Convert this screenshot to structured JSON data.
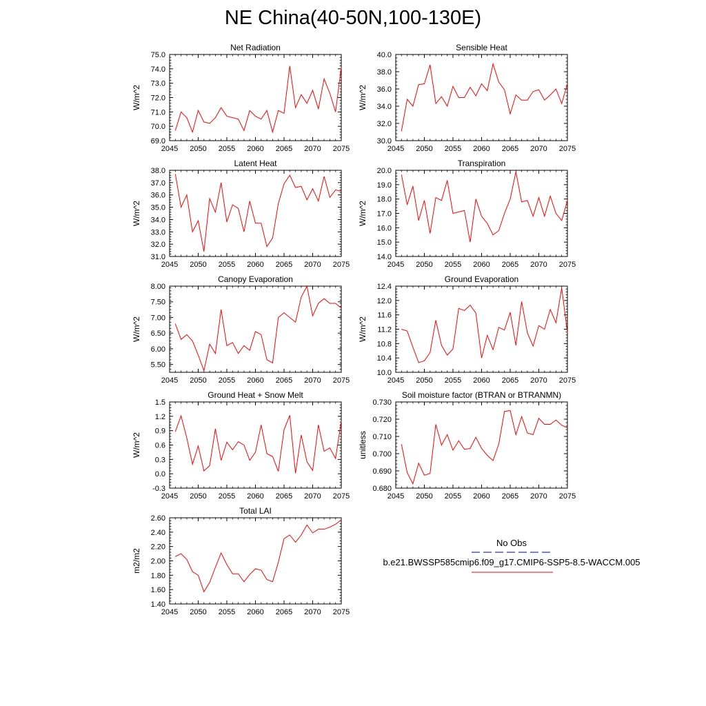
{
  "title": "NE China(40-50N,100-130E)",
  "colors": {
    "model": "#ff0000",
    "obs": "#00008b",
    "axis": "#000000"
  },
  "legend": {
    "obs_label": "No Obs",
    "model_label": "b.e21.BWSSP585cmip6.f09_g17.CMIP6-SSP5-8.5-WACCM.005"
  },
  "chart_data": [
    {
      "type": "line",
      "title": "Net Radiation",
      "ylabel": "W/m^2",
      "xlim": [
        2045,
        2075
      ],
      "ylim": [
        69.0,
        75.0
      ],
      "yticks": [
        "69.0",
        "70.0",
        "71.0",
        "72.0",
        "73.0",
        "74.0",
        "75.0"
      ],
      "xticks": [
        "2045",
        "2050",
        "2055",
        "2060",
        "2065",
        "2070",
        "2075"
      ],
      "x": [
        2046,
        2047,
        2048,
        2049,
        2050,
        2051,
        2052,
        2053,
        2054,
        2055,
        2056,
        2057,
        2058,
        2059,
        2060,
        2061,
        2062,
        2063,
        2064,
        2065,
        2066,
        2067,
        2068,
        2069,
        2070,
        2071,
        2072,
        2073,
        2074,
        2075
      ],
      "series": [
        {
          "values": [
            69.7,
            71.0,
            70.6,
            69.6,
            71.1,
            70.3,
            70.2,
            70.6,
            71.3,
            70.7,
            70.6,
            70.5,
            69.7,
            71.1,
            70.7,
            70.5,
            71.1,
            69.6,
            71.1,
            70.9,
            74.2,
            71.3,
            72.2,
            71.6,
            72.5,
            71.2,
            73.3,
            72.3,
            71.0,
            74.1
          ]
        }
      ]
    },
    {
      "type": "line",
      "title": "Sensible Heat",
      "ylabel": "W/m^2",
      "xlim": [
        2045,
        2075
      ],
      "ylim": [
        30.0,
        40.0
      ],
      "yticks": [
        "30.0",
        "32.0",
        "34.0",
        "36.0",
        "38.0",
        "40.0"
      ],
      "xticks": [
        "2045",
        "2050",
        "2055",
        "2060",
        "2065",
        "2070",
        "2075"
      ],
      "x": [
        2046,
        2047,
        2048,
        2049,
        2050,
        2051,
        2052,
        2053,
        2054,
        2055,
        2056,
        2057,
        2058,
        2059,
        2060,
        2061,
        2062,
        2063,
        2064,
        2065,
        2066,
        2067,
        2068,
        2069,
        2070,
        2071,
        2072,
        2073,
        2074,
        2075
      ],
      "series": [
        {
          "values": [
            31.1,
            34.8,
            34.0,
            36.5,
            36.6,
            38.8,
            34.3,
            35.1,
            34.0,
            36.3,
            35.0,
            35.0,
            36.2,
            35.2,
            36.6,
            35.8,
            38.9,
            36.8,
            35.9,
            33.1,
            35.3,
            34.7,
            34.7,
            35.7,
            35.9,
            34.7,
            35.3,
            36.0,
            34.3,
            36.6
          ]
        }
      ]
    },
    {
      "type": "line",
      "title": "Latent Heat",
      "ylabel": "W/m^2",
      "xlim": [
        2045,
        2075
      ],
      "ylim": [
        31.0,
        38.0
      ],
      "yticks": [
        "31.0",
        "32.0",
        "33.0",
        "34.0",
        "35.0",
        "36.0",
        "37.0",
        "38.0"
      ],
      "xticks": [
        "2045",
        "2050",
        "2055",
        "2060",
        "2065",
        "2070",
        "2075"
      ],
      "x": [
        2046,
        2047,
        2048,
        2049,
        2050,
        2051,
        2052,
        2053,
        2054,
        2055,
        2056,
        2057,
        2058,
        2059,
        2060,
        2061,
        2062,
        2063,
        2064,
        2065,
        2066,
        2067,
        2068,
        2069,
        2070,
        2071,
        2072,
        2073,
        2074,
        2075
      ],
      "series": [
        {
          "values": [
            37.7,
            35.0,
            36.0,
            33.0,
            33.9,
            31.4,
            35.7,
            34.6,
            37.0,
            33.8,
            35.2,
            34.9,
            33.0,
            35.5,
            33.7,
            33.7,
            31.8,
            32.5,
            35.3,
            36.9,
            37.6,
            36.6,
            36.7,
            35.6,
            36.5,
            35.5,
            37.5,
            35.8,
            36.4,
            36.3
          ]
        }
      ]
    },
    {
      "type": "line",
      "title": "Transpiration",
      "ylabel": "W/m^2",
      "xlim": [
        2045,
        2075
      ],
      "ylim": [
        14.0,
        20.0
      ],
      "yticks": [
        "14.0",
        "15.0",
        "16.0",
        "17.0",
        "18.0",
        "19.0",
        "20.0"
      ],
      "xticks": [
        "2045",
        "2050",
        "2055",
        "2060",
        "2065",
        "2070",
        "2075"
      ],
      "x": [
        2046,
        2047,
        2048,
        2049,
        2050,
        2051,
        2052,
        2053,
        2054,
        2055,
        2056,
        2057,
        2058,
        2059,
        2060,
        2061,
        2062,
        2063,
        2064,
        2065,
        2066,
        2067,
        2068,
        2069,
        2070,
        2071,
        2072,
        2073,
        2074,
        2075
      ],
      "series": [
        {
          "values": [
            19.7,
            17.6,
            18.9,
            16.5,
            17.9,
            15.6,
            18.1,
            17.9,
            19.3,
            17.0,
            17.1,
            17.2,
            15.0,
            18.0,
            16.8,
            16.3,
            15.5,
            15.8,
            17.0,
            18.0,
            19.9,
            17.8,
            17.9,
            16.8,
            18.1,
            16.8,
            18.2,
            17.0,
            16.5,
            17.9
          ]
        }
      ]
    },
    {
      "type": "line",
      "title": "Canopy Evaporation",
      "ylabel": "W/m^2",
      "xlim": [
        2045,
        2075
      ],
      "ylim": [
        5.25,
        8.0
      ],
      "yticks": [
        "5.50",
        "6.00",
        "6.50",
        "7.00",
        "7.50",
        "8.00"
      ],
      "xticks": [
        "2045",
        "2050",
        "2055",
        "2060",
        "2065",
        "2070",
        "2075"
      ],
      "x": [
        2046,
        2047,
        2048,
        2049,
        2050,
        2051,
        2052,
        2053,
        2054,
        2055,
        2056,
        2057,
        2058,
        2059,
        2060,
        2061,
        2062,
        2063,
        2064,
        2065,
        2066,
        2067,
        2068,
        2069,
        2070,
        2071,
        2072,
        2073,
        2074,
        2075
      ],
      "series": [
        {
          "values": [
            6.8,
            6.3,
            6.45,
            6.25,
            5.8,
            5.3,
            6.15,
            5.85,
            7.25,
            6.1,
            6.2,
            5.85,
            6.1,
            5.95,
            6.55,
            6.45,
            5.65,
            5.55,
            7.0,
            7.15,
            7.0,
            6.85,
            7.65,
            8.0,
            7.05,
            7.45,
            7.6,
            7.45,
            7.45,
            7.3
          ]
        }
      ]
    },
    {
      "type": "line",
      "title": "Ground Evaporation",
      "ylabel": "W/m^2",
      "xlim": [
        2045,
        2075
      ],
      "ylim": [
        10.0,
        12.4
      ],
      "yticks": [
        "10.0",
        "10.4",
        "10.8",
        "11.2",
        "11.6",
        "12.0",
        "12.4"
      ],
      "xticks": [
        "2045",
        "2050",
        "2055",
        "2060",
        "2065",
        "2070",
        "2075"
      ],
      "x": [
        2046,
        2047,
        2048,
        2049,
        2050,
        2051,
        2052,
        2053,
        2054,
        2055,
        2056,
        2057,
        2058,
        2059,
        2060,
        2061,
        2062,
        2063,
        2064,
        2065,
        2066,
        2067,
        2068,
        2069,
        2070,
        2071,
        2072,
        2073,
        2074,
        2075
      ],
      "series": [
        {
          "values": [
            11.2,
            11.15,
            10.7,
            10.27,
            10.32,
            10.55,
            11.45,
            10.75,
            10.48,
            10.65,
            11.78,
            11.72,
            11.87,
            11.65,
            10.4,
            11.03,
            10.63,
            11.25,
            11.18,
            11.67,
            10.75,
            11.97,
            11.1,
            10.73,
            11.3,
            11.2,
            11.75,
            11.38,
            12.35,
            11.1
          ]
        }
      ]
    },
    {
      "type": "line",
      "title": "Ground Heat + Snow Melt",
      "ylabel": "W/m^2",
      "xlim": [
        2045,
        2075
      ],
      "ylim": [
        -0.3,
        1.5
      ],
      "yticks": [
        "-0.3",
        "0.0",
        "0.3",
        "0.6",
        "0.9",
        "1.2",
        "1.5"
      ],
      "xticks": [
        "2045",
        "2050",
        "2055",
        "2060",
        "2065",
        "2070",
        "2075"
      ],
      "x": [
        2046,
        2047,
        2048,
        2049,
        2050,
        2051,
        2052,
        2053,
        2054,
        2055,
        2056,
        2057,
        2058,
        2059,
        2060,
        2061,
        2062,
        2063,
        2064,
        2065,
        2066,
        2067,
        2068,
        2069,
        2070,
        2071,
        2072,
        2073,
        2074,
        2075
      ],
      "series": [
        {
          "values": [
            0.88,
            1.21,
            0.75,
            0.2,
            0.58,
            0.06,
            0.17,
            0.94,
            0.28,
            0.66,
            0.5,
            0.67,
            0.6,
            0.28,
            0.45,
            1.02,
            0.42,
            0.36,
            0.05,
            0.92,
            1.22,
            0.01,
            0.81,
            0.25,
            0.07,
            1.02,
            0.47,
            0.54,
            0.32,
            1.1
          ]
        }
      ]
    },
    {
      "type": "line",
      "title": "Soil moisture factor (BTRAN or BTRANMN)",
      "ylabel": "unitless",
      "xlim": [
        2045,
        2075
      ],
      "ylim": [
        0.68,
        0.73
      ],
      "yticks": [
        "0.680",
        "0.690",
        "0.700",
        "0.710",
        "0.720",
        "0.730"
      ],
      "xticks": [
        "2045",
        "2050",
        "2055",
        "2060",
        "2065",
        "2070",
        "2075"
      ],
      "x": [
        2046,
        2047,
        2048,
        2049,
        2050,
        2051,
        2052,
        2053,
        2054,
        2055,
        2056,
        2057,
        2058,
        2059,
        2060,
        2061,
        2062,
        2063,
        2064,
        2065,
        2066,
        2067,
        2068,
        2069,
        2070,
        2071,
        2072,
        2073,
        2074,
        2075
      ],
      "series": [
        {
          "values": [
            0.7055,
            0.689,
            0.6825,
            0.6945,
            0.6875,
            0.6885,
            0.717,
            0.705,
            0.711,
            0.702,
            0.7075,
            0.7025,
            0.703,
            0.7095,
            0.703,
            0.699,
            0.696,
            0.7055,
            0.7245,
            0.725,
            0.711,
            0.7215,
            0.712,
            0.711,
            0.7205,
            0.717,
            0.717,
            0.7195,
            0.7165,
            0.715
          ]
        }
      ]
    },
    {
      "type": "line",
      "title": "Total LAI",
      "ylabel": "m2/m2",
      "xlim": [
        2045,
        2075
      ],
      "ylim": [
        1.4,
        2.6
      ],
      "yticks": [
        "1.40",
        "1.60",
        "1.80",
        "2.00",
        "2.20",
        "2.40",
        "2.60"
      ],
      "xticks": [
        "2045",
        "2050",
        "2055",
        "2060",
        "2065",
        "2070",
        "2075"
      ],
      "x": [
        2046,
        2047,
        2048,
        2049,
        2050,
        2051,
        2052,
        2053,
        2054,
        2055,
        2056,
        2057,
        2058,
        2059,
        2060,
        2061,
        2062,
        2063,
        2064,
        2065,
        2066,
        2067,
        2068,
        2069,
        2070,
        2071,
        2072,
        2073,
        2074,
        2075
      ],
      "series": [
        {
          "values": [
            2.06,
            2.1,
            2.02,
            1.85,
            1.8,
            1.57,
            1.7,
            1.91,
            2.11,
            1.95,
            1.82,
            1.82,
            1.71,
            1.81,
            1.89,
            1.87,
            1.74,
            1.71,
            1.98,
            2.31,
            2.36,
            2.26,
            2.36,
            2.5,
            2.39,
            2.44,
            2.44,
            2.47,
            2.51,
            2.57
          ]
        }
      ]
    }
  ]
}
